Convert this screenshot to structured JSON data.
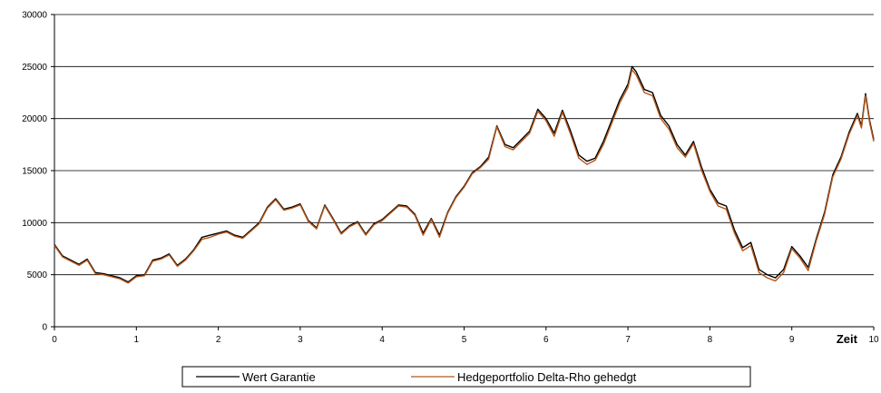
{
  "chart_data": {
    "type": "line",
    "title": "",
    "xlabel": "Zeit",
    "ylabel": "",
    "xlim": [
      0,
      10
    ],
    "ylim": [
      0,
      30000
    ],
    "x_ticks": [
      "0",
      "1",
      "2",
      "3",
      "4",
      "5",
      "6",
      "7",
      "8",
      "9",
      "10"
    ],
    "y_ticks": [
      "0",
      "5000",
      "10000",
      "15000",
      "20000",
      "25000",
      "30000"
    ],
    "grid": true,
    "legend_position": "bottom",
    "colors": {
      "wert_garantie": "#000000",
      "hedgeportfolio": "#b5561a"
    },
    "x": [
      0,
      0.1,
      0.2,
      0.3,
      0.4,
      0.5,
      0.6,
      0.7,
      0.8,
      0.9,
      1.0,
      1.1,
      1.2,
      1.3,
      1.4,
      1.5,
      1.6,
      1.7,
      1.8,
      1.9,
      2.0,
      2.1,
      2.2,
      2.3,
      2.4,
      2.5,
      2.6,
      2.7,
      2.8,
      2.9,
      3.0,
      3.1,
      3.2,
      3.3,
      3.4,
      3.5,
      3.6,
      3.7,
      3.8,
      3.9,
      4.0,
      4.1,
      4.2,
      4.3,
      4.4,
      4.5,
      4.6,
      4.7,
      4.8,
      4.9,
      5.0,
      5.1,
      5.2,
      5.3,
      5.4,
      5.5,
      5.6,
      5.7,
      5.8,
      5.9,
      6.0,
      6.1,
      6.2,
      6.3,
      6.4,
      6.5,
      6.6,
      6.7,
      6.8,
      6.9,
      7.0,
      7.05,
      7.1,
      7.2,
      7.3,
      7.4,
      7.5,
      7.6,
      7.7,
      7.8,
      7.9,
      8.0,
      8.1,
      8.2,
      8.3,
      8.4,
      8.5,
      8.6,
      8.7,
      8.8,
      8.9,
      9.0,
      9.1,
      9.2,
      9.3,
      9.4,
      9.5,
      9.6,
      9.7,
      9.8,
      9.85,
      9.9,
      9.95,
      10.0
    ],
    "series": [
      {
        "name": "Wert Garantie",
        "values": [
          7900,
          6800,
          6400,
          6000,
          6500,
          5200,
          5100,
          4900,
          4700,
          4300,
          4900,
          5000,
          6400,
          6600,
          7000,
          5900,
          6500,
          7400,
          8600,
          8800,
          9000,
          9200,
          8800,
          8600,
          9300,
          10000,
          11500,
          12300,
          11300,
          11500,
          11800,
          10200,
          9500,
          11700,
          10400,
          9000,
          9700,
          10100,
          8900,
          9900,
          10300,
          11000,
          11700,
          11600,
          10800,
          9000,
          10400,
          8800,
          11000,
          12500,
          13500,
          14800,
          15400,
          16300,
          19300,
          17500,
          17200,
          18000,
          18800,
          20900,
          20000,
          18600,
          20800,
          18800,
          16500,
          15900,
          16200,
          17800,
          19800,
          21800,
          23300,
          25000,
          24500,
          22800,
          22500,
          20300,
          19300,
          17500,
          16500,
          17800,
          15300,
          13200,
          11900,
          11600,
          9300,
          7600,
          8100,
          5500,
          5000,
          4700,
          5500,
          7700,
          6800,
          5700,
          8500,
          11000,
          14600,
          16300,
          18700,
          20500,
          19300,
          22400,
          19800,
          18000
        ]
      },
      {
        "name": "Hedgeportfolio Delta-Rho gehedgt",
        "values": [
          7800,
          6700,
          6300,
          5900,
          6400,
          5100,
          5000,
          4800,
          4600,
          4200,
          4800,
          4900,
          6300,
          6500,
          6900,
          5800,
          6400,
          7300,
          8400,
          8600,
          8900,
          9100,
          8700,
          8500,
          9200,
          9900,
          11400,
          12200,
          11200,
          11400,
          11700,
          10100,
          9400,
          11600,
          10300,
          8900,
          9600,
          10000,
          8800,
          9800,
          10200,
          10900,
          11600,
          11500,
          10700,
          8800,
          10300,
          8600,
          10900,
          12400,
          13400,
          14700,
          15300,
          16100,
          19200,
          17300,
          17000,
          17800,
          18600,
          20700,
          19800,
          18300,
          20600,
          18500,
          16200,
          15600,
          16000,
          17500,
          19500,
          21500,
          23000,
          24700,
          24200,
          22500,
          22200,
          20000,
          19000,
          17200,
          16300,
          17600,
          15000,
          13000,
          11600,
          11300,
          9000,
          7300,
          7800,
          5200,
          4700,
          4400,
          5200,
          7500,
          6600,
          5400,
          8300,
          10800,
          14400,
          16100,
          18500,
          20300,
          19100,
          22200,
          19600,
          17800
        ]
      }
    ]
  }
}
